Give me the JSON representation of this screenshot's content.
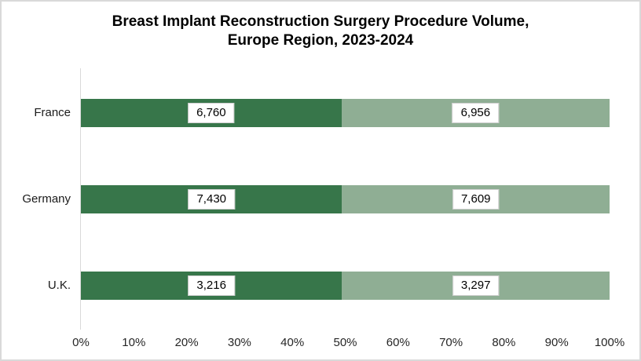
{
  "title": {
    "line1": "Breast Implant Reconstruction Surgery Procedure Volume,",
    "line2": "Europe Region, 2023-2024"
  },
  "colors": {
    "segment_dark_green": "#37764A",
    "segment_light_green": "#8FAE94",
    "axis_line": "#d9d9d9",
    "label_box_border": "#cfcfcf",
    "border": "#d9d9d9"
  },
  "chart_data": {
    "type": "bar",
    "subtype": "horizontal-100-percent-stacked",
    "title": "Breast Implant Reconstruction Surgery Procedure Volume, Europe Region, 2023-2024",
    "categories": [
      "France",
      "Germany",
      "U.K."
    ],
    "series": [
      {
        "name": "segment-1-dark-green",
        "color": "#37764A",
        "values": [
          6760,
          7430,
          3216
        ],
        "labels": [
          "6,760",
          "7,430",
          "3,216"
        ]
      },
      {
        "name": "segment-2-light-green",
        "color": "#8FAE94",
        "values": [
          6956,
          7609,
          3297
        ],
        "labels": [
          "6,956",
          "7,609",
          "3,297"
        ]
      }
    ],
    "x_axis": {
      "ticks": [
        "0%",
        "10%",
        "20%",
        "30%",
        "40%",
        "50%",
        "60%",
        "70%",
        "80%",
        "90%",
        "100%"
      ],
      "range_percent": [
        0,
        100
      ]
    },
    "gridlines": false,
    "legend": "none",
    "value_labels_shown": true
  }
}
